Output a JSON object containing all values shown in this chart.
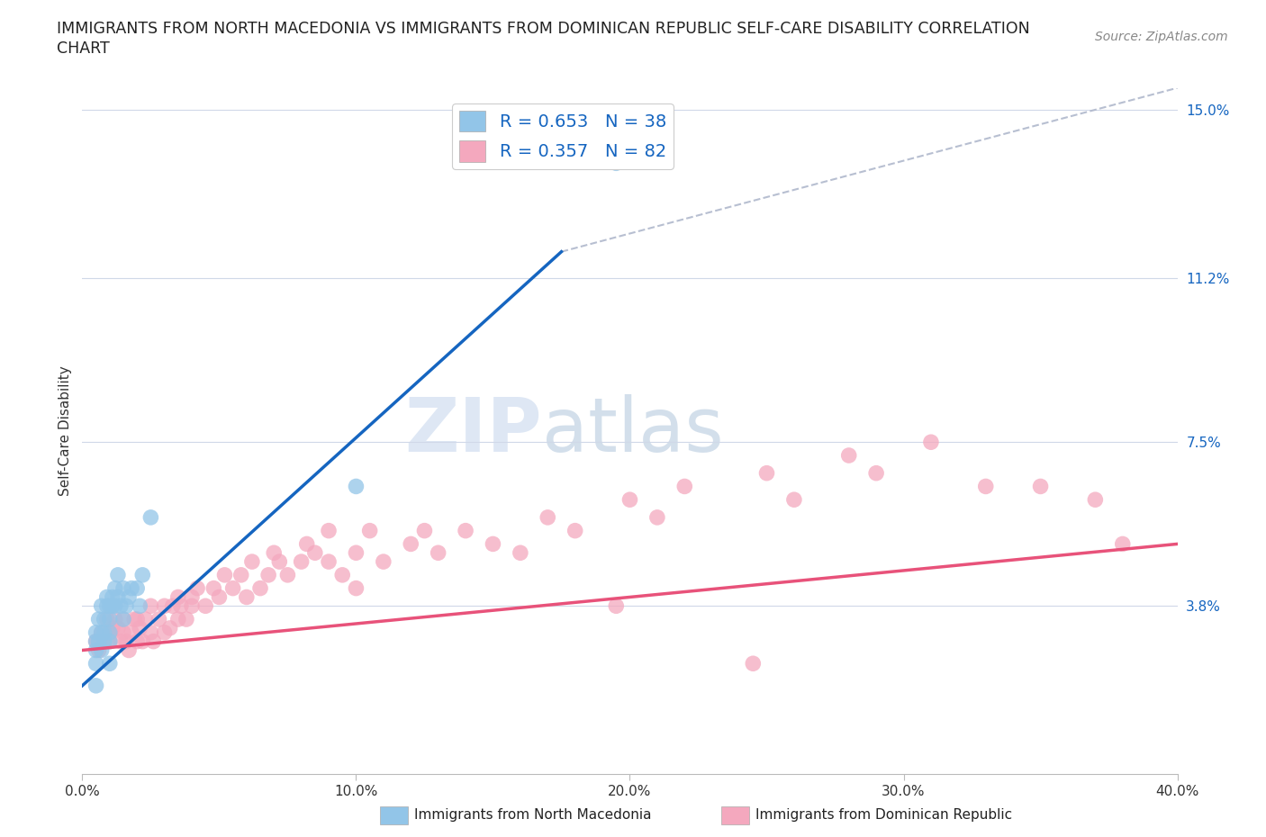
{
  "title_line1": "IMMIGRANTS FROM NORTH MACEDONIA VS IMMIGRANTS FROM DOMINICAN REPUBLIC SELF-CARE DISABILITY CORRELATION",
  "title_line2": "CHART",
  "source": "Source: ZipAtlas.com",
  "xlabel_blue": "Immigrants from North Macedonia",
  "xlabel_pink": "Immigrants from Dominican Republic",
  "ylabel": "Self-Care Disability",
  "xlim": [
    0.0,
    0.4
  ],
  "ylim": [
    0.0,
    0.155
  ],
  "xticks": [
    0.0,
    0.1,
    0.2,
    0.3,
    0.4
  ],
  "xtick_labels": [
    "0.0%",
    "10.0%",
    "20.0%",
    "30.0%",
    "40.0%"
  ],
  "ytick_labels_right": [
    "15.0%",
    "11.2%",
    "7.5%",
    "3.8%"
  ],
  "ytick_vals": [
    0.15,
    0.112,
    0.075,
    0.038
  ],
  "ytick_vals_grid": [
    0.038,
    0.075,
    0.112,
    0.15
  ],
  "R_blue": 0.653,
  "N_blue": 38,
  "R_pink": 0.357,
  "N_pink": 82,
  "color_blue": "#92c5e8",
  "color_pink": "#f4a8be",
  "color_blue_line": "#1565c0",
  "color_pink_line": "#e8527a",
  "color_blue_text": "#1565c0",
  "background": "#ffffff",
  "watermark_zip": "ZIP",
  "watermark_atlas": "atlas",
  "grid_color": "#d0d8e8",
  "ref_line_color": "#b0b8cc",
  "blue_points_x": [
    0.005,
    0.005,
    0.005,
    0.005,
    0.005,
    0.006,
    0.006,
    0.007,
    0.007,
    0.007,
    0.008,
    0.008,
    0.008,
    0.009,
    0.009,
    0.01,
    0.01,
    0.01,
    0.01,
    0.01,
    0.011,
    0.011,
    0.012,
    0.012,
    0.013,
    0.013,
    0.014,
    0.015,
    0.015,
    0.016,
    0.017,
    0.018,
    0.02,
    0.021,
    0.022,
    0.025,
    0.1,
    0.195
  ],
  "blue_points_y": [
    0.025,
    0.028,
    0.03,
    0.032,
    0.02,
    0.03,
    0.035,
    0.028,
    0.032,
    0.038,
    0.03,
    0.035,
    0.032,
    0.038,
    0.04,
    0.035,
    0.038,
    0.032,
    0.03,
    0.025,
    0.04,
    0.038,
    0.038,
    0.042,
    0.04,
    0.045,
    0.038,
    0.042,
    0.035,
    0.038,
    0.04,
    0.042,
    0.042,
    0.038,
    0.045,
    0.058,
    0.065,
    0.138
  ],
  "pink_points_x": [
    0.005,
    0.006,
    0.007,
    0.008,
    0.009,
    0.01,
    0.01,
    0.011,
    0.012,
    0.013,
    0.014,
    0.015,
    0.015,
    0.016,
    0.017,
    0.018,
    0.019,
    0.02,
    0.02,
    0.021,
    0.022,
    0.023,
    0.025,
    0.025,
    0.026,
    0.028,
    0.03,
    0.03,
    0.032,
    0.033,
    0.035,
    0.035,
    0.036,
    0.038,
    0.04,
    0.04,
    0.042,
    0.045,
    0.048,
    0.05,
    0.052,
    0.055,
    0.058,
    0.06,
    0.062,
    0.065,
    0.068,
    0.07,
    0.072,
    0.075,
    0.08,
    0.082,
    0.085,
    0.09,
    0.09,
    0.095,
    0.1,
    0.1,
    0.105,
    0.11,
    0.12,
    0.125,
    0.13,
    0.14,
    0.15,
    0.16,
    0.17,
    0.18,
    0.2,
    0.21,
    0.22,
    0.25,
    0.26,
    0.28,
    0.29,
    0.31,
    0.33,
    0.35,
    0.37,
    0.38,
    0.195,
    0.245
  ],
  "pink_points_y": [
    0.03,
    0.028,
    0.032,
    0.03,
    0.035,
    0.03,
    0.032,
    0.033,
    0.035,
    0.033,
    0.03,
    0.032,
    0.035,
    0.03,
    0.028,
    0.032,
    0.035,
    0.03,
    0.035,
    0.033,
    0.03,
    0.035,
    0.032,
    0.038,
    0.03,
    0.035,
    0.032,
    0.038,
    0.033,
    0.038,
    0.035,
    0.04,
    0.038,
    0.035,
    0.04,
    0.038,
    0.042,
    0.038,
    0.042,
    0.04,
    0.045,
    0.042,
    0.045,
    0.04,
    0.048,
    0.042,
    0.045,
    0.05,
    0.048,
    0.045,
    0.048,
    0.052,
    0.05,
    0.048,
    0.055,
    0.045,
    0.05,
    0.042,
    0.055,
    0.048,
    0.052,
    0.055,
    0.05,
    0.055,
    0.052,
    0.05,
    0.058,
    0.055,
    0.062,
    0.058,
    0.065,
    0.068,
    0.062,
    0.072,
    0.068,
    0.075,
    0.065,
    0.065,
    0.062,
    0.052,
    0.038,
    0.025
  ],
  "blue_line_x": [
    0.0,
    0.175
  ],
  "blue_line_y": [
    0.02,
    0.118
  ],
  "pink_line_x": [
    0.0,
    0.4
  ],
  "pink_line_y": [
    0.028,
    0.052
  ],
  "ref_line_x": [
    0.175,
    0.4
  ],
  "ref_line_y": [
    0.118,
    0.155
  ]
}
